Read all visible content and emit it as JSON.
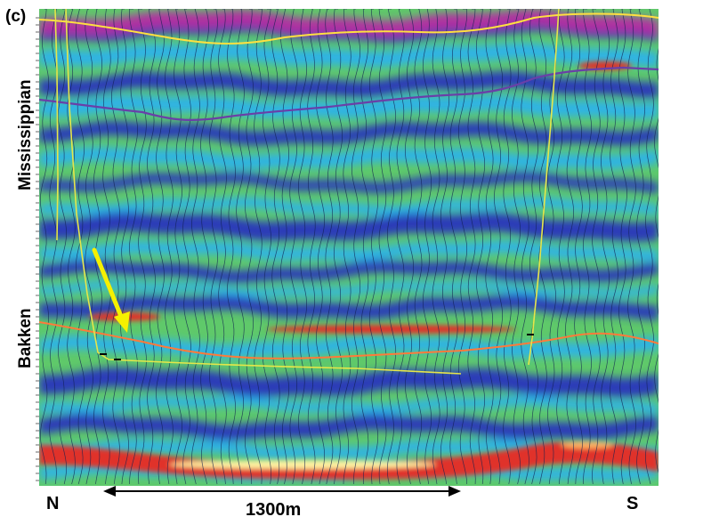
{
  "figure": {
    "panel_label": "(c)",
    "horizon_labels": {
      "upper": "Mississippian",
      "lower": "Bakken"
    },
    "direction_left": "N",
    "direction_right": "S",
    "scale_bar_label": "1300m"
  },
  "colors": {
    "background_green": "#5fc96a",
    "trough_blue": "#2a3bb8",
    "mid_cyan": "#2fb3e6",
    "hot_red": "#e0302a",
    "hot_yellow": "#fff2a0",
    "magenta": "#b030a0",
    "horizon_yellow": "#ffe040",
    "horizon_purple": "#6a3fa8",
    "horizon_orange": "#ff7a3a",
    "well_path_yellow": "#e6e64a",
    "arrow_yellow": "#f5f000",
    "wiggle_traces": "#102050"
  }
}
